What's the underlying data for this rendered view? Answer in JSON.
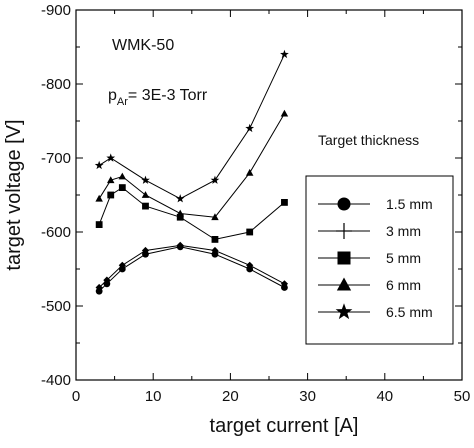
{
  "chart_data": {
    "type": "line",
    "xlabel": "target current  [A]",
    "ylabel": "target voltage [V]",
    "xlim": [
      0,
      50
    ],
    "ylim": [
      -400,
      -900
    ],
    "x_ticks": [
      0,
      10,
      20,
      30,
      40,
      50
    ],
    "x_tick_labels": [
      "0",
      "10",
      "20",
      "30",
      "40",
      "50"
    ],
    "y_ticks": [
      -400,
      -500,
      -600,
      -700,
      -800,
      -900
    ],
    "y_tick_labels": [
      "-400",
      "-500",
      "-600",
      "-700",
      "-800",
      "-900"
    ],
    "grid": false,
    "annotations": {
      "label": "WMK-50",
      "pressure_prefix": "p",
      "pressure_subscript": "Ar",
      "pressure_value": "= 3E-3 Torr"
    },
    "legend": {
      "title": "Target thickness",
      "placement": "right"
    },
    "series": [
      {
        "name": "1.5 mm",
        "marker": "circle",
        "x": [
          3,
          4,
          6,
          9,
          13.5,
          18,
          22.5,
          27
        ],
        "y": [
          -520,
          -530,
          -550,
          -570,
          -580,
          -570,
          -550,
          -525
        ]
      },
      {
        "name": "3 mm",
        "marker": "plus",
        "x": [
          3,
          4,
          6,
          9,
          13.5,
          18,
          22.5,
          27
        ],
        "y": [
          -525,
          -535,
          -555,
          -575,
          -582,
          -575,
          -555,
          -530
        ]
      },
      {
        "name": "5 mm",
        "marker": "square",
        "x": [
          3,
          4.5,
          6,
          9,
          13.5,
          18,
          22.5,
          27
        ],
        "y": [
          -610,
          -650,
          -660,
          -635,
          -620,
          -590,
          -600,
          -640
        ]
      },
      {
        "name": "6 mm",
        "marker": "triangle",
        "x": [
          3,
          4.5,
          6,
          9,
          13.5,
          18,
          22.5,
          27
        ],
        "y": [
          -645,
          -670,
          -675,
          -650,
          -625,
          -620,
          -680,
          -760
        ]
      },
      {
        "name": "6.5 mm",
        "marker": "star",
        "x": [
          3,
          4.5,
          9,
          13.5,
          18,
          22.5,
          27
        ],
        "y": [
          -690,
          -700,
          -670,
          -645,
          -670,
          -740,
          -840
        ]
      }
    ]
  }
}
